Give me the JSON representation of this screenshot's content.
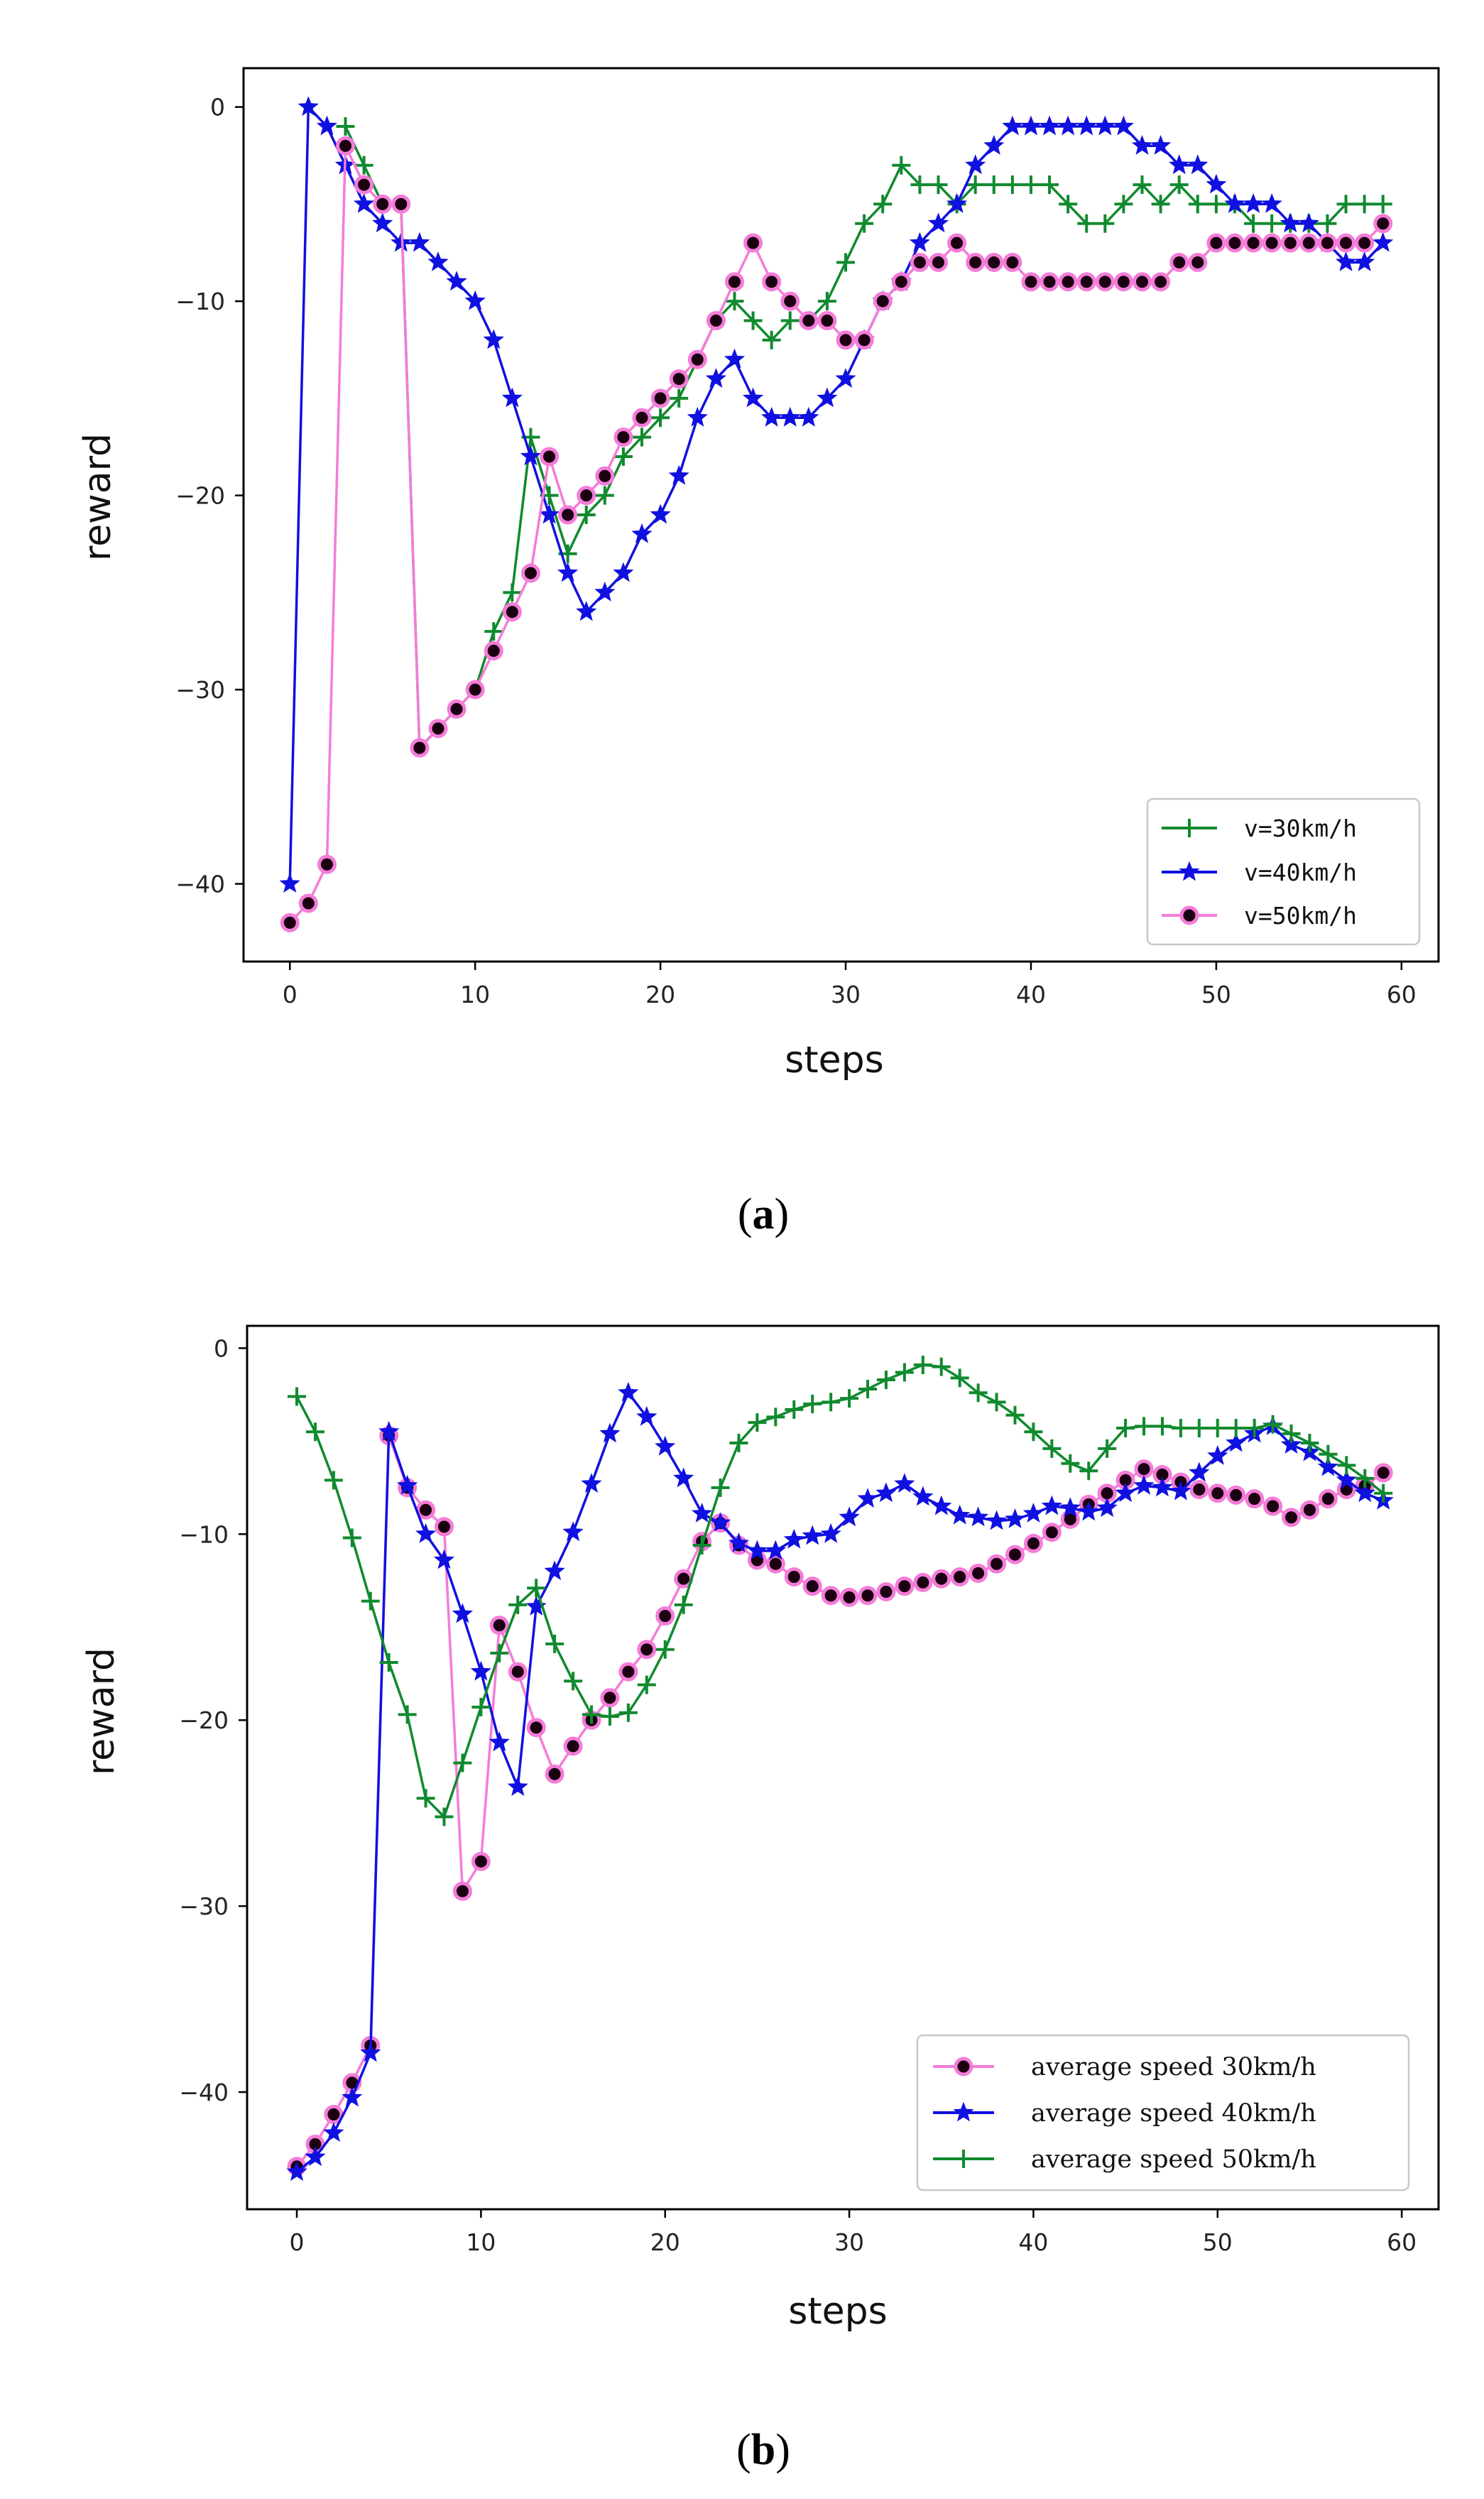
{
  "colors": {
    "green": "#108a2e",
    "blue": "#1010e0",
    "pink": "#f47cd8",
    "marker_dark": "#1a0010",
    "axis": "#000000"
  },
  "chart_data": [
    {
      "id": "a",
      "type": "line",
      "caption": {
        "open": "(",
        "letter": "a",
        "close": ")"
      },
      "xlabel": "steps",
      "ylabel": "reward",
      "xlim": [
        -2.5,
        62
      ],
      "ylim": [
        -44,
        2
      ],
      "xticks": [
        0,
        10,
        20,
        30,
        40,
        50,
        60
      ],
      "yticks": [
        0,
        -10,
        -20,
        -30,
        -40
      ],
      "legend_position": "lower-right",
      "series": [
        {
          "name": "v=30km/h",
          "color": "green",
          "marker": "plus",
          "x": [
            3,
            4,
            5,
            6,
            7,
            8,
            9,
            10,
            11,
            12,
            13,
            14,
            15,
            16,
            17,
            18,
            19,
            20,
            21,
            22,
            23,
            24,
            25,
            26,
            27,
            28,
            29,
            30,
            31,
            32,
            33,
            34,
            35,
            36,
            37,
            38,
            39,
            40,
            41,
            42,
            43,
            44,
            45,
            46,
            47,
            48,
            49,
            50,
            51,
            52,
            53,
            54,
            55,
            56,
            57,
            58,
            59
          ],
          "y": [
            -1,
            -3,
            -5,
            -5,
            -33,
            -32,
            -31,
            -30,
            -27,
            -25,
            -17,
            -20,
            -23,
            -21,
            -20,
            -18,
            -17,
            -16,
            -15,
            -13,
            -11,
            -10,
            -11,
            -12,
            -11,
            -11,
            -10,
            -8,
            -6,
            -5,
            -3,
            -4,
            -4,
            -5,
            -4,
            -4,
            -4,
            -4,
            -4,
            -5,
            -6,
            -6,
            -5,
            -4,
            -5,
            -4,
            -5,
            -5,
            -5,
            -6,
            -6,
            -6,
            -6,
            -6,
            -5,
            -5,
            -5
          ]
        },
        {
          "name": "v=40km/h",
          "color": "blue",
          "marker": "star",
          "x": [
            0,
            1,
            2,
            3,
            4,
            5,
            6,
            7,
            8,
            9,
            10,
            11,
            12,
            13,
            14,
            15,
            16,
            17,
            18,
            19,
            20,
            21,
            22,
            23,
            24,
            25,
            26,
            27,
            28,
            29,
            30,
            31,
            32,
            33,
            34,
            35,
            36,
            37,
            38,
            39,
            40,
            41,
            42,
            43,
            44,
            45,
            46,
            47,
            48,
            49,
            50,
            51,
            52,
            53,
            54,
            55,
            56,
            57,
            58,
            59
          ],
          "y": [
            -40,
            0,
            -1,
            -3,
            -5,
            -6,
            -7,
            -7,
            -8,
            -9,
            -10,
            -12,
            -15,
            -18,
            -21,
            -24,
            -26,
            -25,
            -24,
            -22,
            -21,
            -19,
            -16,
            -14,
            -13,
            -15,
            -16,
            -16,
            -16,
            -15,
            -14,
            -12,
            -10,
            -9,
            -7,
            -6,
            -5,
            -3,
            -2,
            -1,
            -1,
            -1,
            -1,
            -1,
            -1,
            -1,
            -2,
            -2,
            -3,
            -3,
            -4,
            -5,
            -5,
            -5,
            -6,
            -6,
            -7,
            -8,
            -8,
            -7
          ]
        },
        {
          "name": "v=50km/h",
          "color": "pink",
          "marker": "dot",
          "x": [
            0,
            1,
            2,
            3,
            4,
            5,
            6,
            7,
            8,
            9,
            10,
            11,
            12,
            13,
            14,
            15,
            16,
            17,
            18,
            19,
            20,
            21,
            22,
            23,
            24,
            25,
            26,
            27,
            28,
            29,
            30,
            31,
            32,
            33,
            34,
            35,
            36,
            37,
            38,
            39,
            40,
            41,
            42,
            43,
            44,
            45,
            46,
            47,
            48,
            49,
            50,
            51,
            52,
            53,
            54,
            55,
            56,
            57,
            58,
            59
          ],
          "y": [
            -42,
            -41,
            -39,
            -2,
            -4,
            -5,
            -5,
            -33,
            -32,
            -31,
            -30,
            -28,
            -26,
            -24,
            -18,
            -21,
            -20,
            -19,
            -17,
            -16,
            -15,
            -14,
            -13,
            -11,
            -9,
            -7,
            -9,
            -10,
            -11,
            -11,
            -12,
            -12,
            -10,
            -9,
            -8,
            -8,
            -7,
            -8,
            -8,
            -8,
            -9,
            -9,
            -9,
            -9,
            -9,
            -9,
            -9,
            -9,
            -8,
            -8,
            -7,
            -7,
            -7,
            -7,
            -7,
            -7,
            -7,
            -7,
            -7,
            -6
          ]
        }
      ]
    },
    {
      "id": "b",
      "type": "line",
      "caption": {
        "open": "(",
        "letter": "b",
        "close": ")"
      },
      "xlabel": "steps",
      "ylabel": "reward",
      "xlim": [
        -2.7,
        62
      ],
      "ylim": [
        -46.3,
        1.2
      ],
      "xticks": [
        0,
        10,
        20,
        30,
        40,
        50,
        60
      ],
      "yticks": [
        0,
        -10,
        -20,
        -30,
        -40
      ],
      "legend_position": "lower-right",
      "series": [
        {
          "name": "average speed 30km/h",
          "color": "pink",
          "marker": "dot",
          "x": [
            0,
            1,
            2,
            3,
            4,
            5,
            6,
            7,
            8,
            9,
            10,
            11,
            12,
            13,
            14,
            15,
            16,
            17,
            18,
            19,
            20,
            21,
            22,
            23,
            24,
            25,
            26,
            27,
            28,
            29,
            30,
            31,
            32,
            33,
            34,
            35,
            36,
            37,
            38,
            39,
            40,
            41,
            42,
            43,
            44,
            45,
            46,
            47,
            48,
            49,
            50,
            51,
            52,
            53,
            54,
            55,
            56,
            57,
            58,
            59
          ],
          "y": [
            -44,
            -42.8,
            -41.2,
            -39.5,
            -37.5,
            -4.7,
            -7.5,
            -8.7,
            -9.6,
            -29.2,
            -27.6,
            -14.9,
            -17.4,
            -20.4,
            -22.9,
            -21.4,
            -20,
            -18.8,
            -17.4,
            -16.2,
            -14.4,
            -12.4,
            -10.4,
            -9.4,
            -10.6,
            -11.4,
            -11.6,
            -12.3,
            -12.8,
            -13.3,
            -13.4,
            -13.3,
            -13.1,
            -12.8,
            -12.6,
            -12.4,
            -12.3,
            -12.1,
            -11.6,
            -11.1,
            -10.5,
            -9.9,
            -9.2,
            -8.4,
            -7.8,
            -7.1,
            -6.5,
            -6.8,
            -7.2,
            -7.6,
            -7.8,
            -7.9,
            -8.1,
            -8.5,
            -9.1,
            -8.7,
            -8.1,
            -7.6,
            -7.4,
            -6.7
          ]
        },
        {
          "name": "average speed 40km/h",
          "color": "blue",
          "marker": "star",
          "x": [
            0,
            1,
            2,
            3,
            4,
            5,
            6,
            7,
            8,
            9,
            10,
            11,
            12,
            13,
            14,
            15,
            16,
            17,
            18,
            19,
            20,
            21,
            22,
            23,
            24,
            25,
            26,
            27,
            28,
            29,
            30,
            31,
            32,
            33,
            34,
            35,
            36,
            37,
            38,
            39,
            40,
            41,
            42,
            43,
            44,
            45,
            46,
            47,
            48,
            49,
            50,
            51,
            52,
            53,
            54,
            55,
            56,
            57,
            58,
            59
          ],
          "y": [
            -44.3,
            -43.5,
            -42.2,
            -40.3,
            -37.9,
            -4.5,
            -7.4,
            -10,
            -11.4,
            -14.3,
            -17.4,
            -21.2,
            -23.6,
            -13.9,
            -12,
            -9.9,
            -7.3,
            -4.6,
            -2.4,
            -3.7,
            -5.3,
            -7,
            -8.9,
            -9.4,
            -10.5,
            -10.9,
            -10.9,
            -10.3,
            -10.1,
            -10,
            -9.1,
            -8.1,
            -7.8,
            -7.3,
            -8,
            -8.5,
            -9,
            -9.1,
            -9.3,
            -9.2,
            -8.9,
            -8.5,
            -8.6,
            -8.8,
            -8.6,
            -7.8,
            -7.4,
            -7.5,
            -7.7,
            -6.7,
            -5.8,
            -5.1,
            -4.6,
            -4.2,
            -5.2,
            -5.6,
            -6.4,
            -7.1,
            -7.8,
            -8.2
          ]
        },
        {
          "name": "average speed 50km/h",
          "color": "green",
          "marker": "plus",
          "x": [
            0,
            1,
            2,
            3,
            4,
            5,
            6,
            7,
            8,
            9,
            10,
            11,
            12,
            13,
            14,
            15,
            16,
            17,
            18,
            19,
            20,
            21,
            22,
            23,
            24,
            25,
            26,
            27,
            28,
            29,
            30,
            31,
            32,
            33,
            34,
            35,
            36,
            37,
            38,
            39,
            40,
            41,
            42,
            43,
            44,
            45,
            46,
            47,
            48,
            49,
            50,
            51,
            52,
            53,
            54,
            55,
            56,
            57,
            58,
            59
          ],
          "y": [
            -2.6,
            -4.5,
            -7.1,
            -10.2,
            -13.6,
            -16.9,
            -19.7,
            -24.2,
            -25.2,
            -22.3,
            -19.3,
            -16.4,
            -13.8,
            -12.9,
            -15.9,
            -17.9,
            -19.7,
            -19.8,
            -19.6,
            -18.1,
            -16.2,
            -13.8,
            -10.6,
            -7.5,
            -5.1,
            -4,
            -3.7,
            -3.3,
            -3,
            -2.9,
            -2.7,
            -2.2,
            -1.7,
            -1.3,
            -0.9,
            -1,
            -1.6,
            -2.4,
            -2.9,
            -3.6,
            -4.5,
            -5.4,
            -6.2,
            -6.6,
            -5.4,
            -4.3,
            -4.2,
            -4.2,
            -4.3,
            -4.3,
            -4.3,
            -4.3,
            -4.3,
            -4.1,
            -4.6,
            -5.1,
            -5.7,
            -6.3,
            -7,
            -7.8
          ]
        }
      ]
    }
  ]
}
